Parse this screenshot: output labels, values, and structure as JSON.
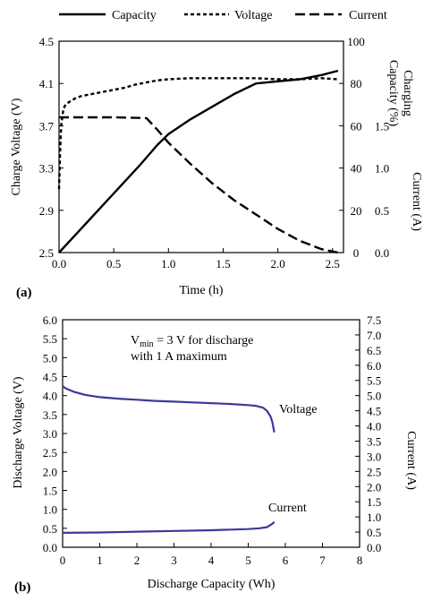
{
  "chart_data": [
    {
      "type": "line",
      "panel_label": "(a)",
      "xlabel": "Time (h)",
      "ylabel_left": "Charge Voltage (V)",
      "ylabel_right_capacity": "Charging Capacity (%)",
      "ylabel_right_current": "Current (A)",
      "xlim": [
        0,
        2.6
      ],
      "xticks": [
        0.0,
        0.5,
        1.0,
        1.5,
        2.0,
        2.5
      ],
      "xtick_labels": [
        "0.0",
        "0.5",
        "1.0",
        "1.5",
        "2.0",
        "2.5"
      ],
      "ylim_voltage": [
        2.5,
        4.5
      ],
      "yticks_voltage": [
        2.5,
        2.9,
        3.3,
        3.7,
        4.1,
        4.5
      ],
      "ytick_labels_voltage": [
        "2.5",
        "2.9",
        "3.3",
        "3.7",
        "4.1",
        "4.5"
      ],
      "ylim_capacity": [
        0,
        100
      ],
      "yticks_capacity": [
        0,
        20,
        40,
        60,
        80,
        100
      ],
      "ytick_labels_capacity": [
        "0",
        "20",
        "40",
        "60",
        "80",
        "100"
      ],
      "ylim_current": [
        0,
        2.5
      ],
      "yticks_current": [
        0.0,
        0.5,
        1.0,
        1.5
      ],
      "ytick_labels_current": [
        "0.0",
        "0.5",
        "1.0",
        "1.5"
      ],
      "grid": false,
      "legend_position": "top",
      "series": [
        {
          "name": "Capacity",
          "axis": "capacity",
          "style": "solid",
          "x": [
            0.0,
            0.25,
            0.5,
            0.75,
            0.9,
            1.0,
            1.2,
            1.4,
            1.6,
            1.8,
            2.0,
            2.2,
            2.4,
            2.55
          ],
          "y": [
            0,
            14,
            28,
            42,
            51,
            56,
            63,
            69,
            75,
            80,
            81,
            82,
            84,
            86
          ]
        },
        {
          "name": "Voltage",
          "axis": "voltage",
          "style": "dotted",
          "x": [
            0.0,
            0.01,
            0.02,
            0.04,
            0.06,
            0.1,
            0.15,
            0.2,
            0.3,
            0.4,
            0.5,
            0.6,
            0.7,
            0.8,
            0.9,
            1.0,
            1.2,
            1.5,
            1.8,
            2.0,
            2.2,
            2.4,
            2.55
          ],
          "y": [
            3.1,
            3.45,
            3.7,
            3.86,
            3.9,
            3.93,
            3.96,
            3.98,
            4.0,
            4.02,
            4.04,
            4.06,
            4.09,
            4.11,
            4.13,
            4.14,
            4.15,
            4.15,
            4.15,
            4.14,
            4.14,
            4.15,
            4.14
          ]
        },
        {
          "name": "Current",
          "axis": "current",
          "style": "dashed",
          "x": [
            0.0,
            0.05,
            0.2,
            0.5,
            0.8,
            0.9,
            1.0,
            1.2,
            1.4,
            1.6,
            1.8,
            2.0,
            2.2,
            2.4,
            2.55
          ],
          "y": [
            1.6,
            1.6,
            1.6,
            1.6,
            1.59,
            1.45,
            1.3,
            1.05,
            0.82,
            0.62,
            0.45,
            0.28,
            0.14,
            0.04,
            0.0
          ]
        }
      ]
    },
    {
      "type": "line",
      "panel_label": "(b)",
      "xlabel": "Discharge Capacity (Wh)",
      "ylabel_left": "Discharge Voltage (V)",
      "ylabel_right": "Current (A)",
      "xlim": [
        0,
        8
      ],
      "xticks": [
        0,
        1,
        2,
        3,
        4,
        5,
        6,
        7,
        8
      ],
      "xtick_labels": [
        "0",
        "1",
        "2",
        "3",
        "4",
        "5",
        "6",
        "7",
        "8"
      ],
      "ylim_voltage": [
        0,
        6
      ],
      "yticks_voltage": [
        0.0,
        0.5,
        1.0,
        1.5,
        2.0,
        2.5,
        3.0,
        3.5,
        4.0,
        4.5,
        5.0,
        5.5,
        6.0
      ],
      "ytick_labels_voltage": [
        "0.0",
        "0.5",
        "1.0",
        "1.5",
        "2.0",
        "2.5",
        "3.0",
        "3.5",
        "4.0",
        "4.5",
        "5.0",
        "5.5",
        "6.0"
      ],
      "ylim_current": [
        0,
        7.5
      ],
      "yticks_current": [
        0.0,
        0.5,
        1.0,
        1.5,
        2.0,
        2.5,
        3.0,
        3.5,
        4.0,
        4.5,
        5.0,
        5.5,
        6.0,
        6.5,
        7.0,
        7.5
      ],
      "ytick_labels_current": [
        "0.0",
        "0.5",
        "1.0",
        "1.5",
        "2.0",
        "2.5",
        "3.0",
        "3.5",
        "4.0",
        "4.5",
        "5.0",
        "5.5",
        "6.0",
        "6.5",
        "7.0",
        "7.5"
      ],
      "grid": false,
      "annotation_line1": "V",
      "annotation_sub": "min",
      "annotation_line1_rest": " = 3 V for discharge",
      "annotation_line2": "with 1 A maximum",
      "series": [
        {
          "name": "Voltage",
          "axis": "voltage",
          "color": "#3a3a9a",
          "x": [
            0.0,
            0.1,
            0.3,
            0.6,
            1.0,
            1.5,
            2.0,
            2.5,
            3.0,
            3.5,
            4.0,
            4.5,
            5.0,
            5.2,
            5.4,
            5.5,
            5.6,
            5.65,
            5.7
          ],
          "y": [
            4.25,
            4.18,
            4.1,
            4.02,
            3.96,
            3.92,
            3.89,
            3.86,
            3.84,
            3.82,
            3.8,
            3.78,
            3.75,
            3.73,
            3.68,
            3.6,
            3.45,
            3.3,
            3.03
          ]
        },
        {
          "name": "Current",
          "axis": "voltage",
          "color": "#3a3a9a",
          "x": [
            0.0,
            1.0,
            2.0,
            3.0,
            4.0,
            5.0,
            5.3,
            5.5,
            5.65,
            5.7
          ],
          "y": [
            0.38,
            0.39,
            0.41,
            0.43,
            0.45,
            0.48,
            0.5,
            0.53,
            0.62,
            0.67
          ]
        }
      ]
    }
  ]
}
